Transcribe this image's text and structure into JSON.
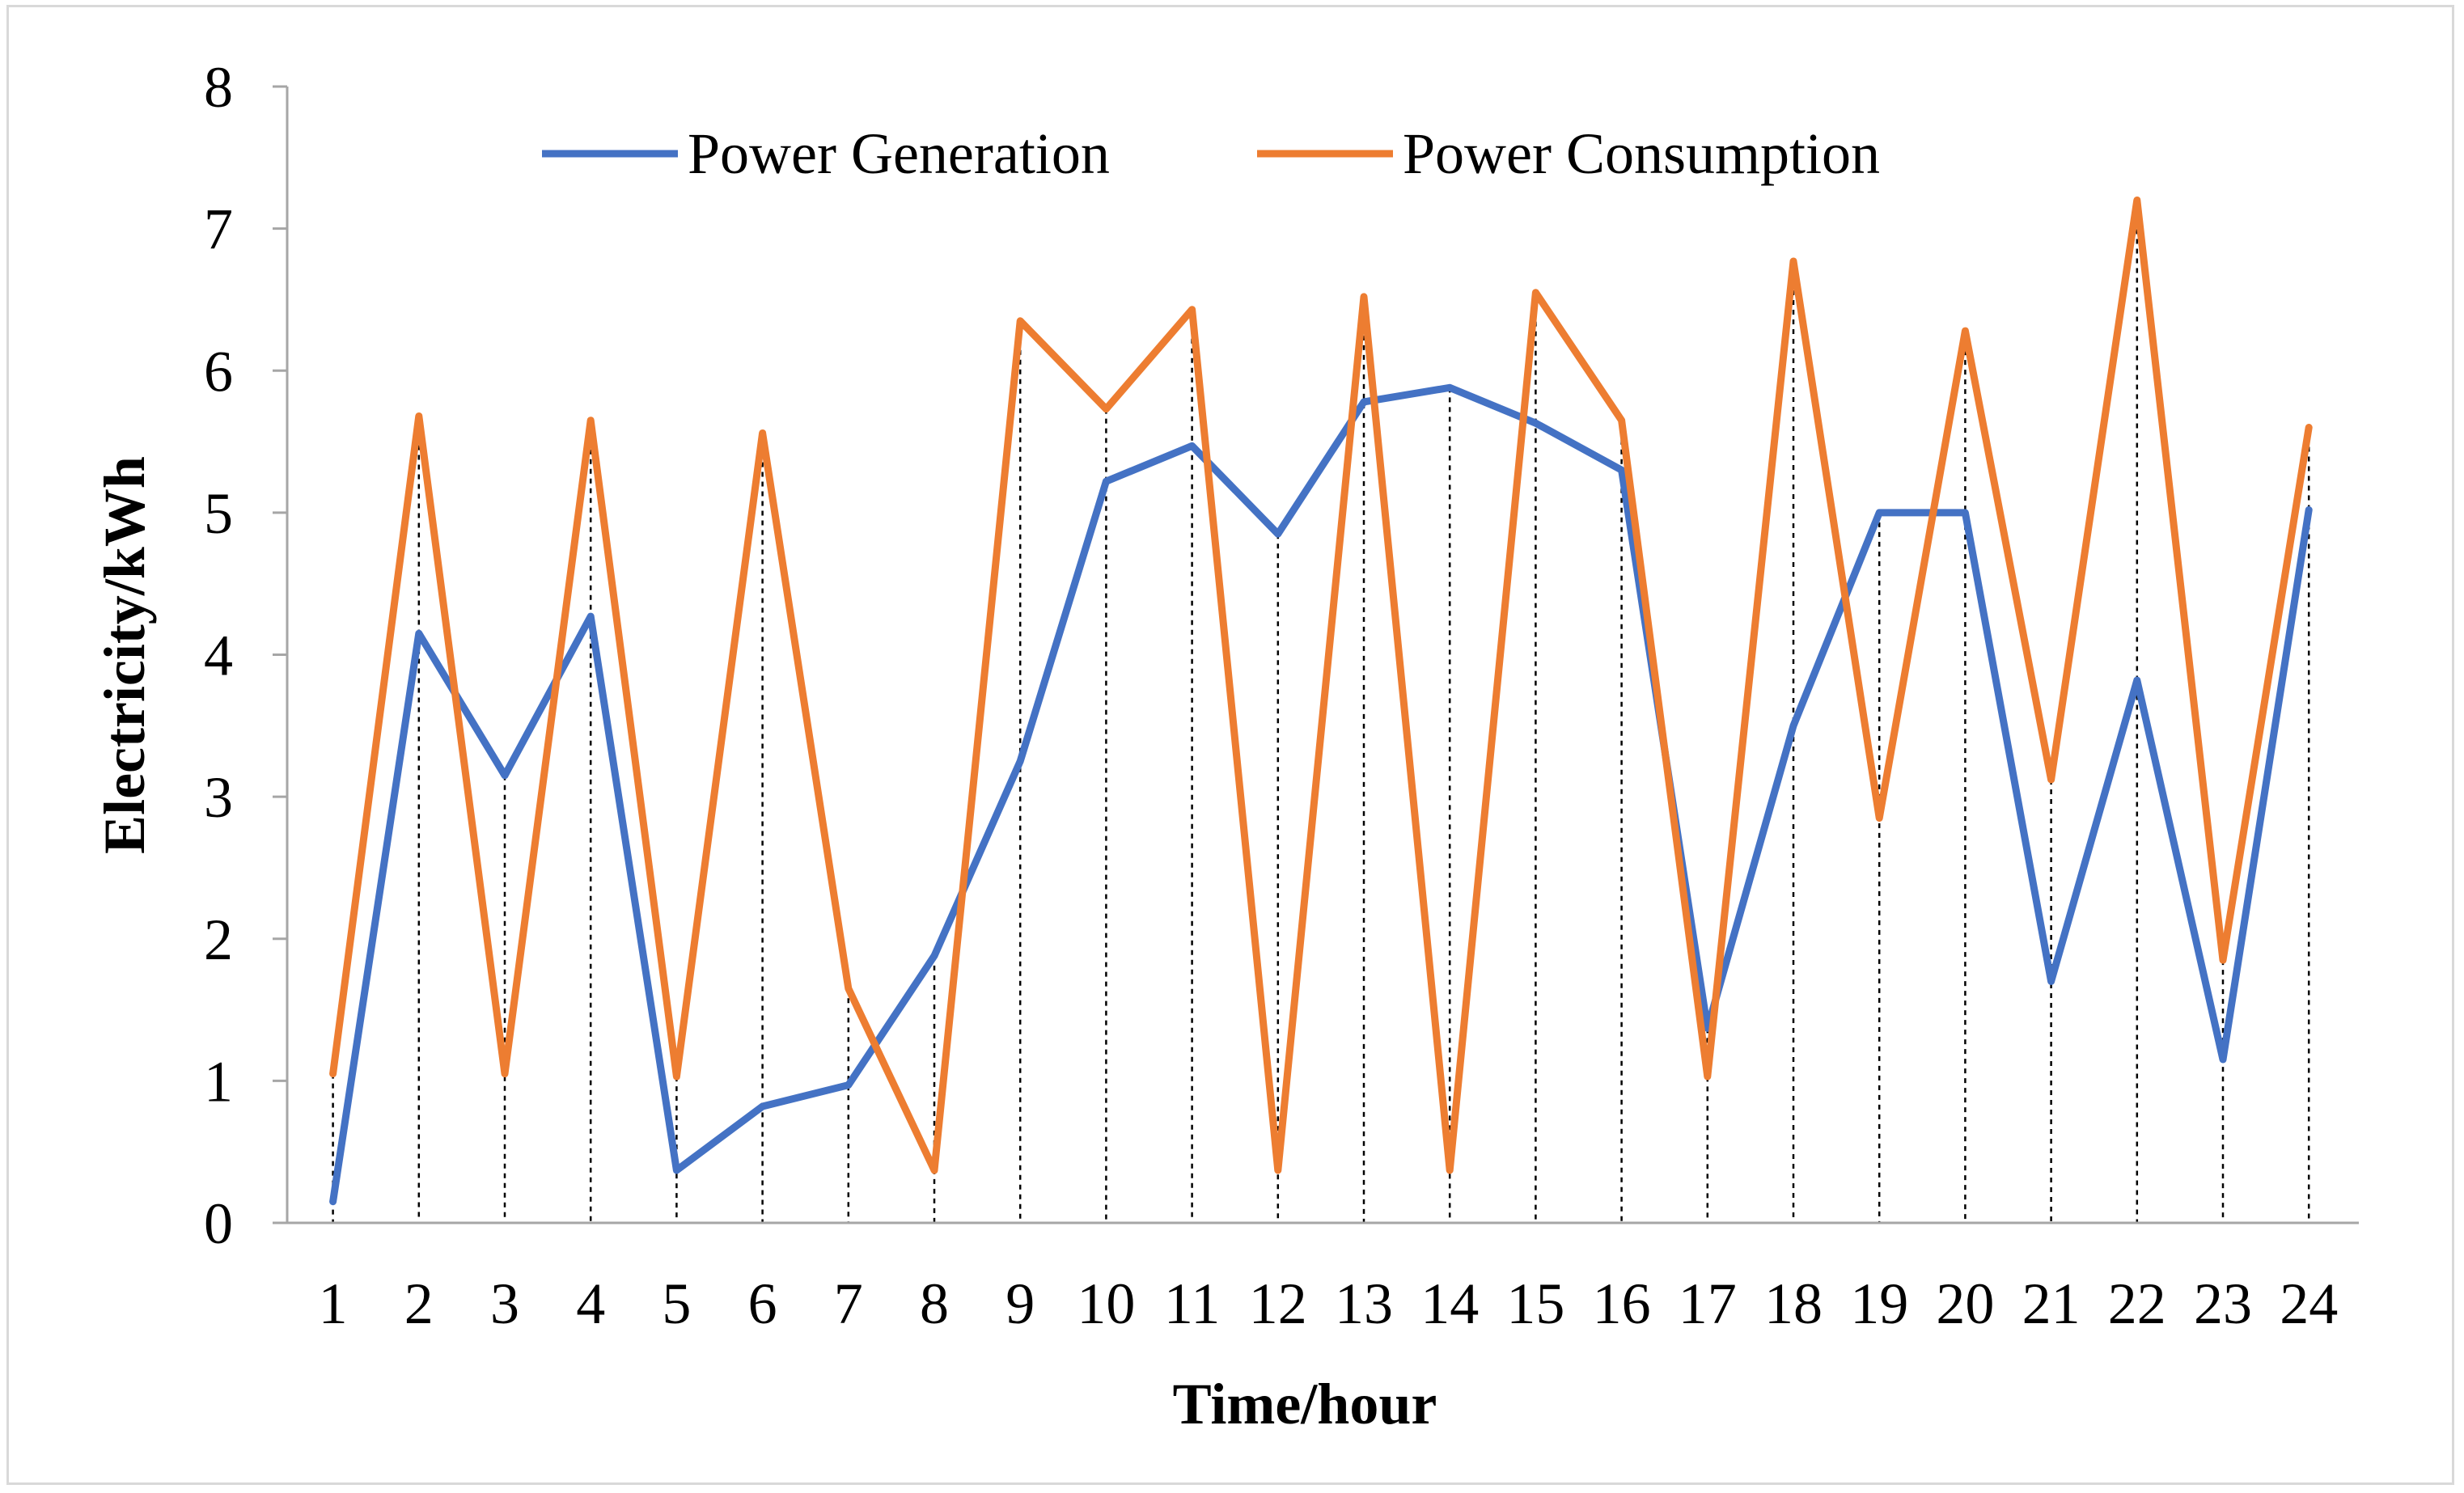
{
  "chart_data": {
    "type": "line",
    "title": "",
    "xlabel": "Time/hour",
    "ylabel": "Electricity/kWh",
    "categories": [
      "1",
      "2",
      "3",
      "4",
      "5",
      "6",
      "7",
      "8",
      "9",
      "10",
      "11",
      "12",
      "13",
      "14",
      "15",
      "16",
      "17",
      "18",
      "19",
      "20",
      "21",
      "22",
      "23",
      "24"
    ],
    "ylim": [
      0,
      8
    ],
    "yticks": [
      "0",
      "1",
      "2",
      "3",
      "4",
      "5",
      "6",
      "7",
      "8"
    ],
    "grid": false,
    "legend": "top-center",
    "drop_lines": true,
    "series": [
      {
        "name": "Power Generation",
        "color": "#4472c4",
        "values": [
          0.15,
          4.15,
          3.15,
          4.27,
          0.37,
          0.82,
          0.97,
          1.88,
          3.25,
          5.22,
          5.47,
          4.85,
          5.78,
          5.88,
          5.63,
          5.3,
          1.37,
          3.5,
          5.0,
          5.0,
          1.7,
          3.82,
          1.15,
          5.02
        ]
      },
      {
        "name": "Power Consumption",
        "color": "#ed7d31",
        "values": [
          1.05,
          5.68,
          1.05,
          5.65,
          1.03,
          5.56,
          1.65,
          0.37,
          6.35,
          5.73,
          6.43,
          0.37,
          6.52,
          0.37,
          6.55,
          5.65,
          1.03,
          6.77,
          2.85,
          6.28,
          3.12,
          7.2,
          1.85,
          5.6
        ]
      }
    ]
  }
}
